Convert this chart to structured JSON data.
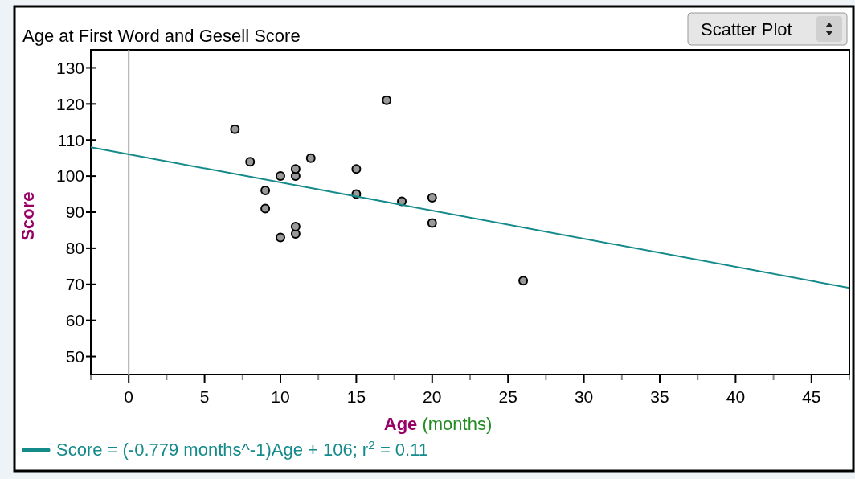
{
  "chart_data": {
    "type": "scatter",
    "title": "Age at First Word and Gesell Score",
    "xlabel": "Age (months)",
    "ylabel": "Score",
    "annotations": [
      "Scatter Plot"
    ],
    "xlim": [
      -2.5,
      47.5
    ],
    "ylim": [
      45,
      135
    ],
    "xticks": [
      {
        "value": -2.5,
        "label": null
      },
      0,
      {
        "value": 2.5,
        "label": null
      },
      5,
      {
        "value": 7.5,
        "label": null
      },
      10,
      {
        "value": 12.5,
        "label": null
      },
      15,
      {
        "value": 17.5,
        "label": null
      },
      20,
      {
        "value": 22.5,
        "label": null
      },
      25,
      {
        "value": 27.5,
        "label": null
      },
      30,
      {
        "value": 32.5,
        "label": null
      },
      35,
      {
        "value": 37.5,
        "label": null
      },
      40,
      {
        "value": 42.5,
        "label": null
      },
      45,
      {
        "value": 47.5,
        "label": null
      }
    ],
    "yticks": [
      50,
      60,
      70,
      80,
      90,
      100,
      110,
      120,
      130
    ],
    "grid": false,
    "legend": "bottom left",
    "marker": "circle",
    "ref_lines": [
      {
        "axis": "x",
        "value": 0,
        "color": "#aaaaaa"
      }
    ],
    "series": [
      {
        "color": "#999999",
        "x": [
          15,
          26,
          10,
          9,
          15,
          20,
          18,
          11,
          8,
          20,
          7,
          9,
          11,
          11,
          10,
          12,
          17,
          11
        ],
        "values": [
          95,
          71,
          83,
          91,
          102,
          87,
          93,
          100,
          104,
          94,
          113,
          96,
          84,
          102,
          100,
          105,
          121,
          86
        ]
      },
      {
        "type": "line",
        "name": "Score = (-0.779 months^-1)Age + 106; r$^{2}$ = 0.11",
        "color": "#148a8a",
        "marker": "none",
        "line_style": "solid",
        "x": [
          -2.5,
          47.5
        ],
        "values": [
          108,
          69
        ]
      }
    ]
  }
}
